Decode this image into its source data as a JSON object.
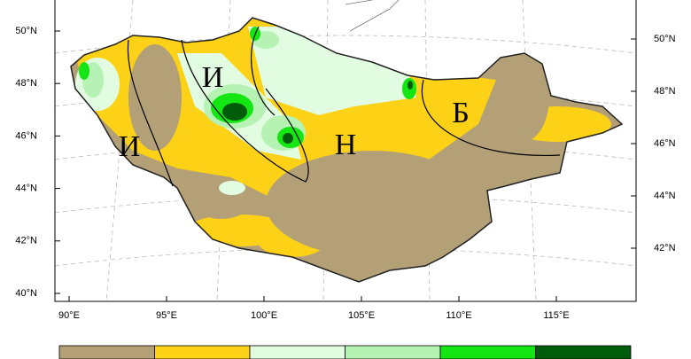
{
  "map": {
    "lat_labels_left": [
      "50°N",
      "48°N",
      "46°N",
      "44°N",
      "42°N",
      "40°N"
    ],
    "lat_labels_right": [
      "50°N",
      "48°N",
      "46°N",
      "44°N",
      "42°N"
    ],
    "lon_labels": [
      "90°E",
      "95°E",
      "100°E",
      "105°E",
      "110°E",
      "115°E"
    ],
    "regions": [
      "И",
      "И",
      "Н",
      "Б"
    ],
    "legend_colors": [
      "#b4a077",
      "#fcd116",
      "#e2fce2",
      "#b6f2b4",
      "#14e614",
      "#005c0a"
    ]
  }
}
